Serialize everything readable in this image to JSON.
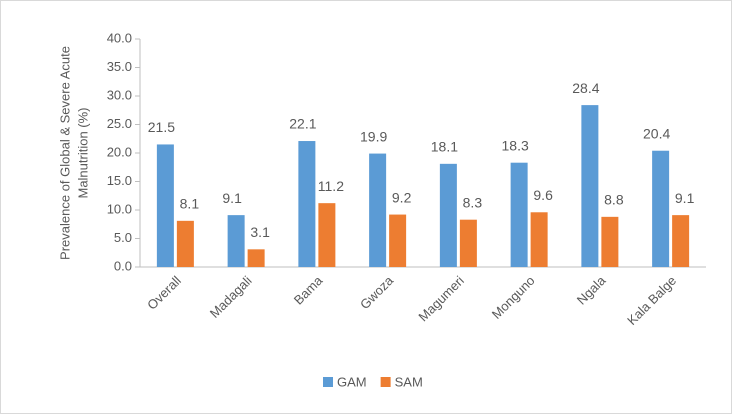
{
  "chart_data": {
    "type": "bar",
    "ylabel": [
      "Prevalence of Global & Severe Acute",
      "Malnutrition (%)"
    ],
    "categories": [
      "Overall",
      "Madagali",
      "Bama",
      "Gwoza",
      "Magumeri",
      "Monguno",
      "Ngala",
      "Kala Balge"
    ],
    "series": [
      {
        "name": "GAM",
        "color": "#5b9bd5",
        "values": [
          21.5,
          9.1,
          22.1,
          19.9,
          18.1,
          18.3,
          28.4,
          20.4
        ]
      },
      {
        "name": "SAM",
        "color": "#ed7d31",
        "values": [
          8.1,
          3.1,
          11.2,
          9.2,
          8.3,
          9.6,
          8.8,
          9.1
        ]
      }
    ],
    "ylim": [
      0,
      40
    ],
    "yticks": [
      {
        "value": 0,
        "label": "0.0"
      },
      {
        "value": 5,
        "label": "5.0"
      },
      {
        "value": 10,
        "label": "10.0"
      },
      {
        "value": 15,
        "label": "15.0"
      },
      {
        "value": 20,
        "label": "20.0"
      },
      {
        "value": 25,
        "label": "25.0"
      },
      {
        "value": 30,
        "label": "30.0"
      },
      {
        "value": 35,
        "label": "35.0"
      },
      {
        "value": 40,
        "label": "40.0"
      }
    ],
    "grid": false,
    "legend": "bottom"
  }
}
